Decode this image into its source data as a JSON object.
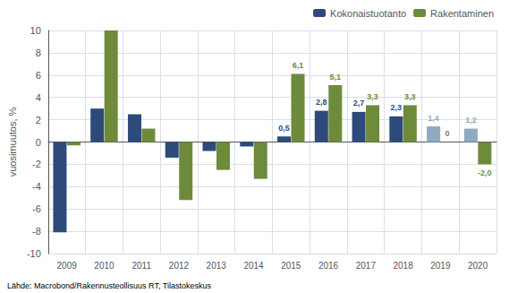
{
  "chart_data": {
    "type": "bar",
    "categories": [
      "2009",
      "2010",
      "2011",
      "2012",
      "2013",
      "2014",
      "2015",
      "2016",
      "2017",
      "2018",
      "2019",
      "2020"
    ],
    "ylabel": "vuosimuutos, %",
    "ylim": [
      -10,
      10
    ],
    "yticks": [
      -10,
      -8,
      -6,
      -4,
      -2,
      0,
      2,
      4,
      6,
      8,
      10
    ],
    "grid": true,
    "legend": "top right",
    "data_labels": true,
    "annotations": [
      "Lähde: Macrobond/Rakennusteollisuus RT, Tilastokeskus"
    ],
    "series": [
      {
        "name": "Kokonaistuotanto",
        "color": "#2e4a7a",
        "colors": [
          "#2e4a7a",
          "#2e4a7a",
          "#2e4a7a",
          "#2e4a7a",
          "#2e4a7a",
          "#2e4a7a",
          "#2e4a7a",
          "#2e4a7a",
          "#2e4a7a",
          "#2e4a7a",
          "#8faabf",
          "#8faabf"
        ],
        "values": [
          -8.1,
          3.0,
          2.5,
          -1.4,
          -0.8,
          -0.4,
          0.5,
          2.8,
          2.7,
          2.3,
          1.4,
          1.2
        ],
        "value_labels": [
          null,
          null,
          null,
          null,
          null,
          null,
          "0,5",
          "2,8",
          "2,7",
          "2,3",
          "1,4",
          "1,2"
        ]
      },
      {
        "name": "Rakentaminen",
        "color": "#6d8b3b",
        "values": [
          -0.3,
          10.0,
          1.2,
          -5.2,
          -2.5,
          -3.3,
          6.1,
          5.1,
          3.3,
          3.3,
          0.0,
          -2.0
        ],
        "value_labels": [
          null,
          null,
          null,
          null,
          null,
          null,
          "6,1",
          "5,1",
          "3,3",
          "3,3",
          "0",
          "-2,0"
        ]
      }
    ]
  }
}
